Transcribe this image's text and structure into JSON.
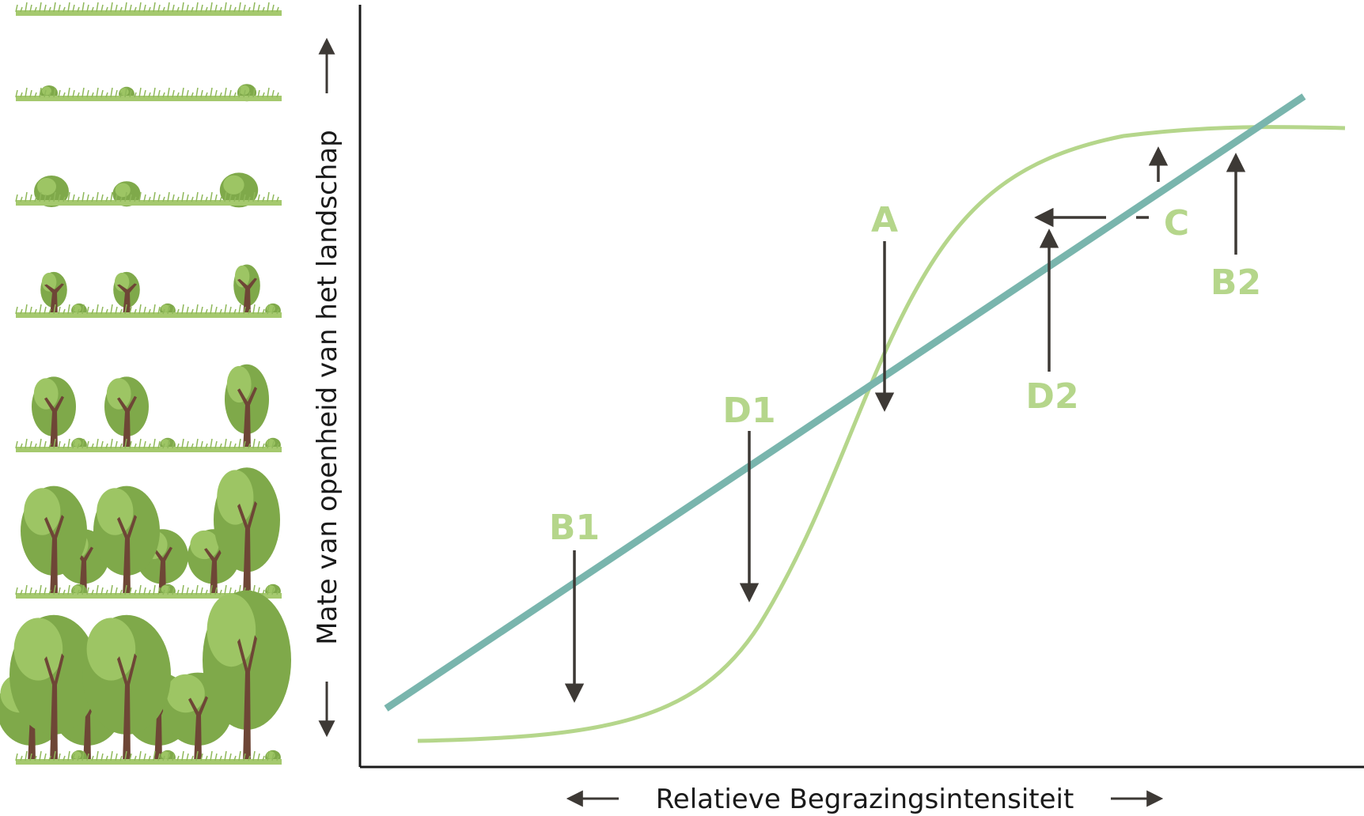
{
  "colors": {
    "sigmoid": "#b5d68b",
    "line": "#79b5ad",
    "arrow": "#3d3935",
    "label": "#b5d68b",
    "axis": "#1a1a1a",
    "grass": "#a5c96e",
    "grass_dark": "#8fb85a",
    "foliage": "#7fa94a",
    "foliage_light": "#9dc564",
    "trunk": "#6e4636"
  },
  "axes": {
    "y_label": "Mate van openheid van het landschap",
    "x_label": "Relatieve Begrazingsintensiteit"
  },
  "labels": {
    "A": "A",
    "B1": "B1",
    "B2": "B2",
    "C": "C",
    "D1": "D1",
    "D2": "D2"
  },
  "panels": [
    {
      "id": "open-grass",
      "trees": 0,
      "density": 0
    },
    {
      "id": "small-shrubs",
      "trees": 0,
      "density": 1
    },
    {
      "id": "shrubs",
      "trees": 0,
      "density": 2
    },
    {
      "id": "young-trees",
      "trees": 1,
      "density": 3
    },
    {
      "id": "trees",
      "trees": 1,
      "density": 4
    },
    {
      "id": "woodland",
      "trees": 2,
      "density": 5
    },
    {
      "id": "forest",
      "trees": 3,
      "density": 6
    }
  ]
}
